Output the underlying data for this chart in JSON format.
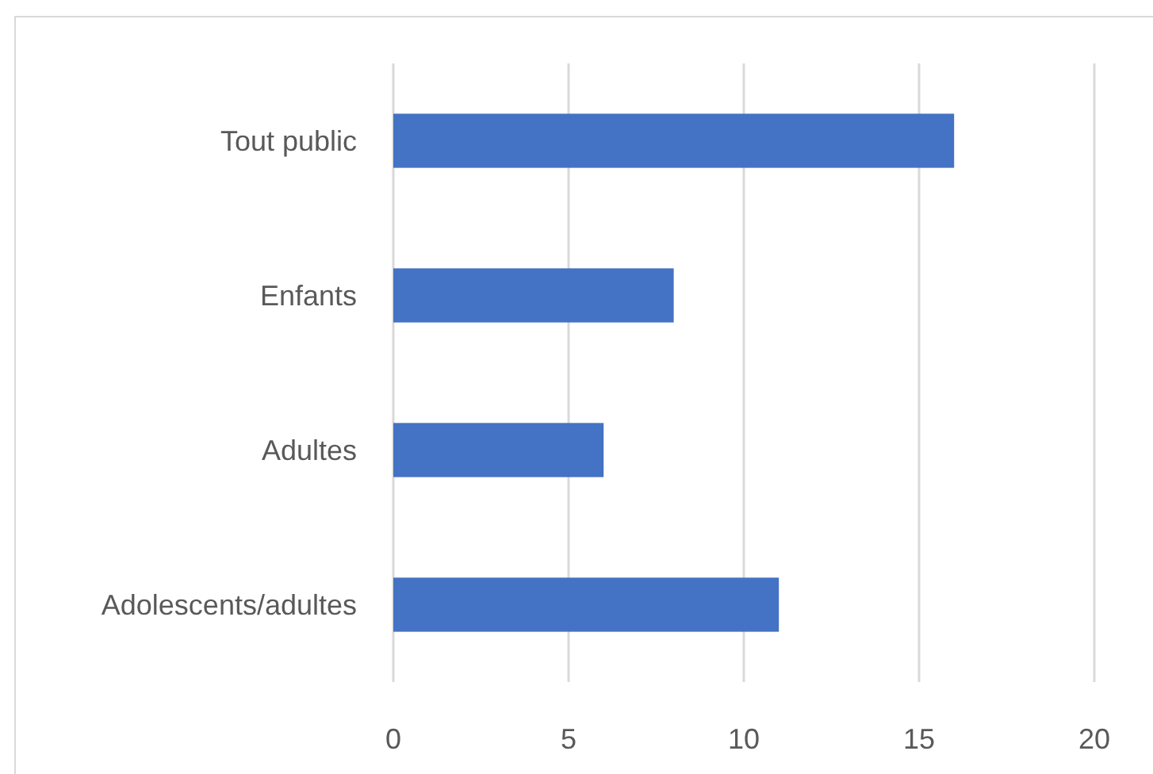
{
  "chart_data": {
    "type": "bar",
    "orientation": "horizontal",
    "categories": [
      "Tout public",
      "Enfants",
      "Adultes",
      "Adolescents/adultes"
    ],
    "values": [
      16,
      8,
      6,
      11
    ],
    "color": "#4472c4",
    "xlim": [
      0,
      20
    ],
    "xticks": [
      0,
      5,
      10,
      15,
      20
    ],
    "grid": "x"
  }
}
